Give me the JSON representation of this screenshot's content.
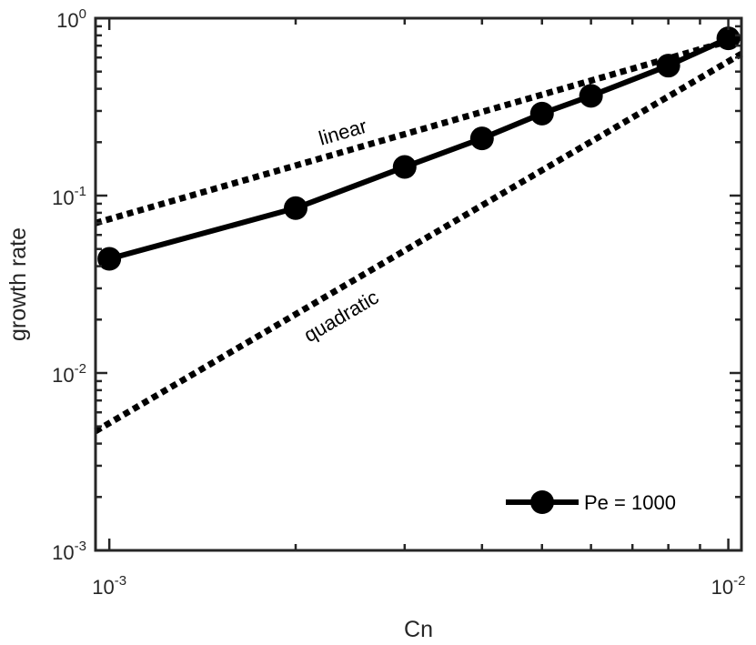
{
  "chart_data": {
    "type": "line",
    "xscale": "log",
    "yscale": "log",
    "xlim": [
      0.00095,
      0.0105
    ],
    "ylim": [
      0.001,
      1
    ],
    "xlabel": "Cn",
    "ylabel": "growth rate",
    "grid": false,
    "legend_location": "bottom-right",
    "x_ticks": [
      {
        "value": 0.001,
        "base": "10",
        "exp": "-3"
      },
      {
        "value": 0.01,
        "base": "10",
        "exp": "-2"
      }
    ],
    "y_ticks": [
      {
        "value": 0.001,
        "base": "10",
        "exp": "-3"
      },
      {
        "value": 0.01,
        "base": "10",
        "exp": "-2"
      },
      {
        "value": 0.1,
        "base": "10",
        "exp": "-1"
      },
      {
        "value": 1,
        "base": "10",
        "exp": "0"
      }
    ],
    "series": [
      {
        "name": "Pe = 1000",
        "style": "solid-with-circle-markers",
        "color": "#000000",
        "x": [
          0.001,
          0.002,
          0.003,
          0.004,
          0.005,
          0.006,
          0.008,
          0.01
        ],
        "y": [
          0.044,
          0.085,
          0.145,
          0.21,
          0.29,
          0.365,
          0.54,
          0.77
        ]
      }
    ],
    "reference_lines": [
      {
        "label": "linear",
        "style": "dotted",
        "color": "#000000",
        "x": [
          0.00095,
          0.0105
        ],
        "y": [
          0.07,
          0.78
        ]
      },
      {
        "label": "quadratic",
        "style": "dotted",
        "color": "#000000",
        "x": [
          0.00095,
          0.0105
        ],
        "y": [
          0.0047,
          0.63
        ]
      }
    ]
  }
}
